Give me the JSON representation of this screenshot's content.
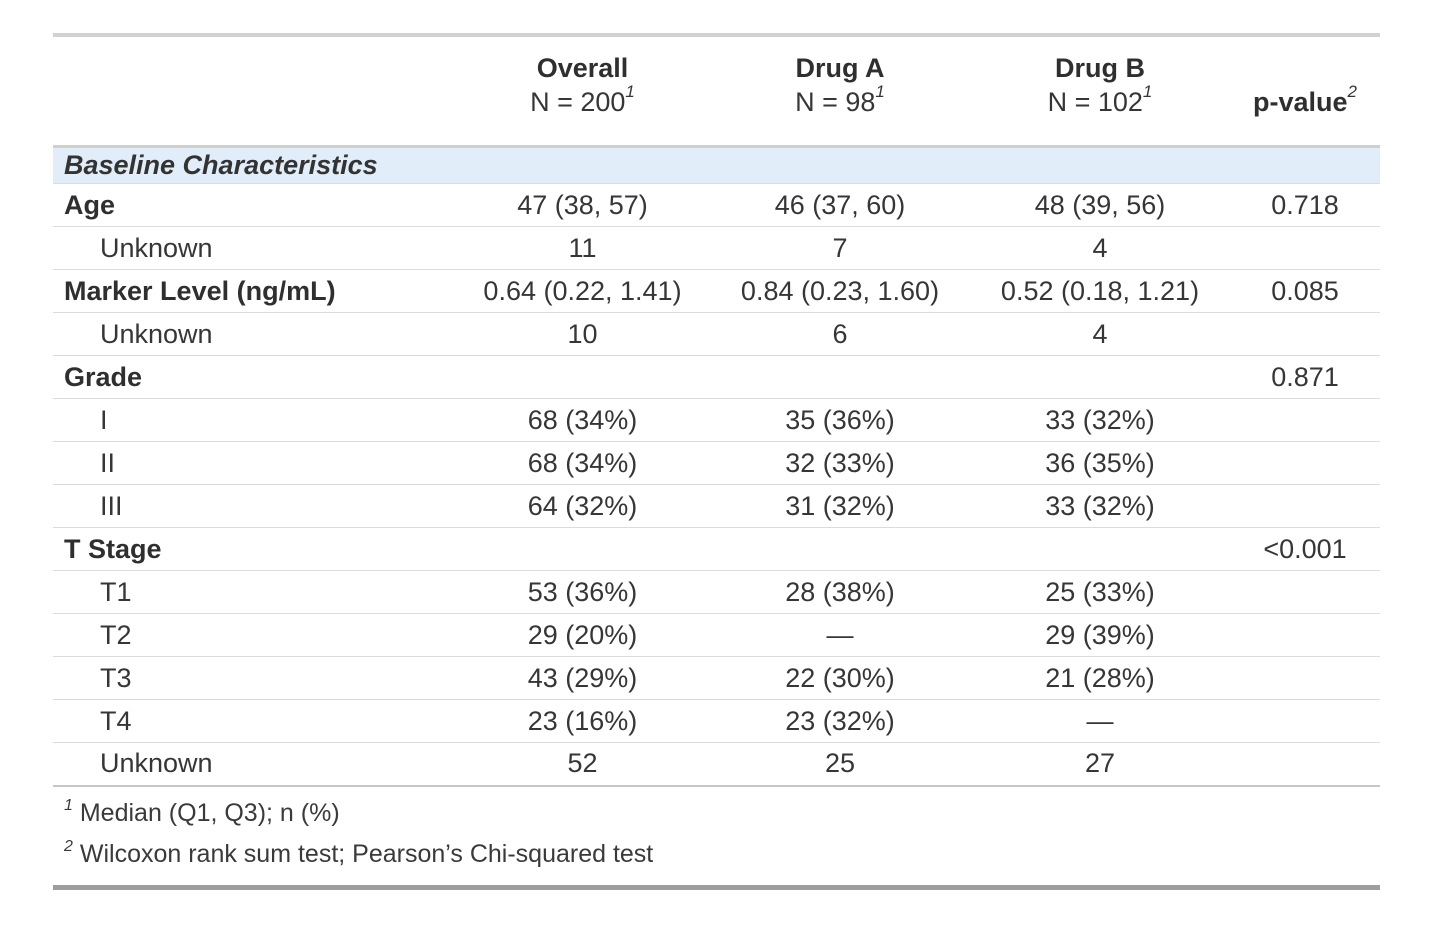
{
  "table": {
    "columns": [
      {
        "label": "",
        "sub": "",
        "sup": ""
      },
      {
        "label": "Overall",
        "sub": "N = 200",
        "sup": "1"
      },
      {
        "label": "Drug A",
        "sub": "N = 98",
        "sup": "1"
      },
      {
        "label": "Drug B",
        "sub": "N = 102",
        "sup": "1"
      },
      {
        "label": "p-value",
        "sub": "",
        "sup": "2"
      }
    ],
    "group_header": "Baseline Characteristics",
    "rows": [
      {
        "label": "Age",
        "bold": true,
        "indent": false,
        "overall": "47 (38, 57)",
        "drug_a": "46 (37, 60)",
        "drug_b": "48 (39, 56)",
        "p": "0.718"
      },
      {
        "label": "Unknown",
        "bold": false,
        "indent": true,
        "overall": "11",
        "drug_a": "7",
        "drug_b": "4",
        "p": ""
      },
      {
        "label": "Marker Level (ng/mL)",
        "bold": true,
        "indent": false,
        "overall": "0.64 (0.22, 1.41)",
        "drug_a": "0.84 (0.23, 1.60)",
        "drug_b": "0.52 (0.18, 1.21)",
        "p": "0.085"
      },
      {
        "label": "Unknown",
        "bold": false,
        "indent": true,
        "overall": "10",
        "drug_a": "6",
        "drug_b": "4",
        "p": ""
      },
      {
        "label": "Grade",
        "bold": true,
        "indent": false,
        "overall": "",
        "drug_a": "",
        "drug_b": "",
        "p": "0.871"
      },
      {
        "label": "I",
        "bold": false,
        "indent": true,
        "overall": "68 (34%)",
        "drug_a": "35 (36%)",
        "drug_b": "33 (32%)",
        "p": ""
      },
      {
        "label": "II",
        "bold": false,
        "indent": true,
        "overall": "68 (34%)",
        "drug_a": "32 (33%)",
        "drug_b": "36 (35%)",
        "p": ""
      },
      {
        "label": "III",
        "bold": false,
        "indent": true,
        "overall": "64 (32%)",
        "drug_a": "31 (32%)",
        "drug_b": "33 (32%)",
        "p": ""
      },
      {
        "label": "T Stage",
        "bold": true,
        "indent": false,
        "overall": "",
        "drug_a": "",
        "drug_b": "",
        "p": "<0.001"
      },
      {
        "label": "T1",
        "bold": false,
        "indent": true,
        "overall": "53 (36%)",
        "drug_a": "28 (38%)",
        "drug_b": "25 (33%)",
        "p": ""
      },
      {
        "label": "T2",
        "bold": false,
        "indent": true,
        "overall": "29 (20%)",
        "drug_a": "—",
        "drug_b": "29 (39%)",
        "p": ""
      },
      {
        "label": "T3",
        "bold": false,
        "indent": true,
        "overall": "43 (29%)",
        "drug_a": "22 (30%)",
        "drug_b": "21 (28%)",
        "p": ""
      },
      {
        "label": "T4",
        "bold": false,
        "indent": true,
        "overall": "23 (16%)",
        "drug_a": "23 (32%)",
        "drug_b": "—",
        "p": ""
      },
      {
        "label": "Unknown",
        "bold": false,
        "indent": true,
        "overall": "52",
        "drug_a": "25",
        "drug_b": "27",
        "p": ""
      }
    ],
    "footnotes": [
      {
        "sup": "1",
        "text": "Median (Q1, Q3); n (%)"
      },
      {
        "sup": "2",
        "text": "Wilcoxon rank sum test; Pearson’s Chi-squared test"
      }
    ],
    "colors": {
      "group_row_background": "#e1edf9",
      "text": "#363636",
      "row_rule": "#dcdcdc",
      "top_rule": "#d2d2d2",
      "bottom_rule": "#9e9e9e"
    }
  }
}
